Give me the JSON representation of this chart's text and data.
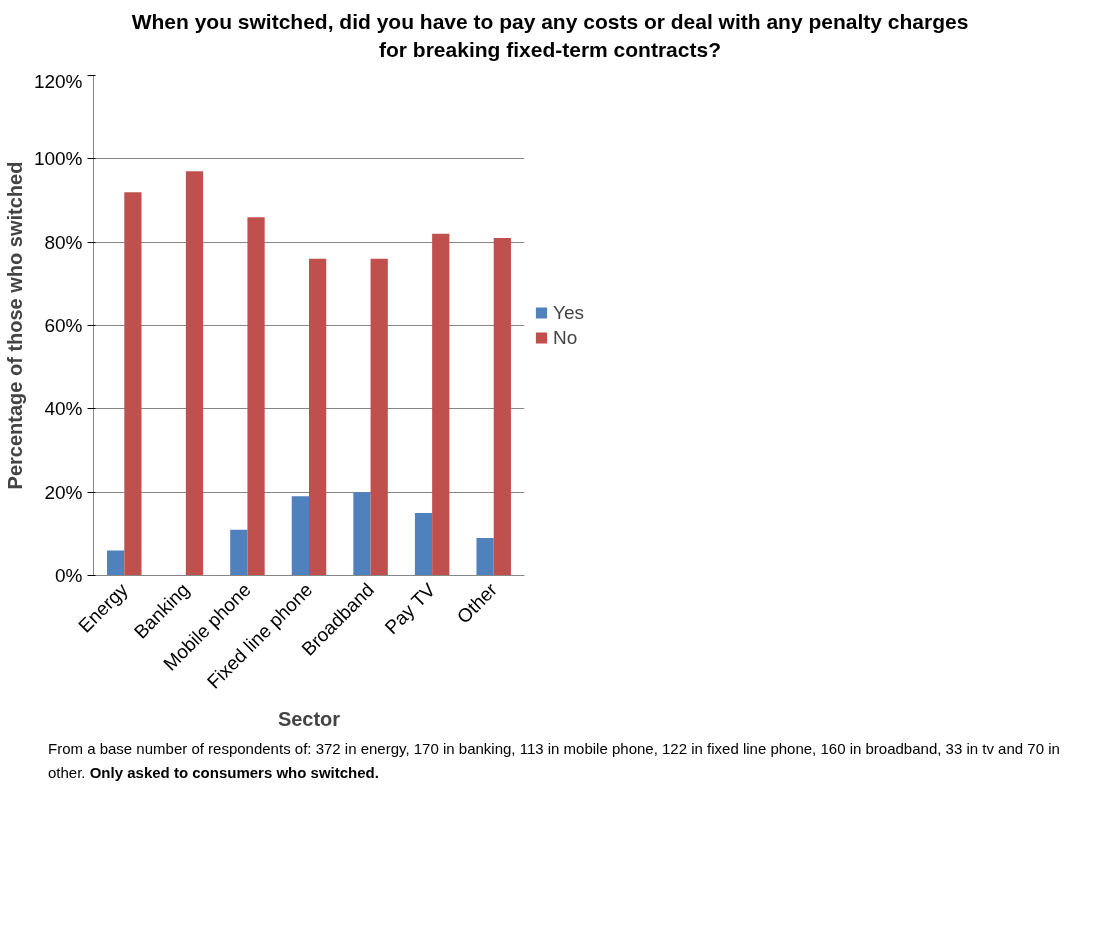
{
  "chart_data": {
    "type": "bar",
    "title": "When you switched, did you have to pay any costs or deal with any penalty charges for breaking fixed-term contracts?",
    "xlabel": "Sector",
    "ylabel": "Percentage of those who switched",
    "categories": [
      "Energy",
      "Banking",
      "Mobile phone",
      "Fixed line phone",
      "Broadband",
      "Pay TV",
      "Other"
    ],
    "series": [
      {
        "name": "Yes",
        "color": "#4f81bd",
        "values": [
          6,
          0,
          11,
          19,
          20,
          15,
          9
        ]
      },
      {
        "name": "No",
        "color": "#c0504d",
        "values": [
          92,
          97,
          86,
          76,
          76,
          82,
          81
        ]
      }
    ],
    "ylim": [
      0,
      120
    ],
    "yticks": [
      {
        "value": 0,
        "label": "0%"
      },
      {
        "value": 20,
        "label": "20%"
      },
      {
        "value": 40,
        "label": "40%"
      },
      {
        "value": 60,
        "label": "60%"
      },
      {
        "value": 80,
        "label": "80%"
      },
      {
        "value": 100,
        "label": "100%"
      },
      {
        "value": 120,
        "label": "120%"
      }
    ],
    "grid": "y",
    "legend": "right",
    "annotations": [
      "From a base number of respondents of: 372 in energy, 170 in banking, 113 in mobile phone, 122 in fixed line phone, 160 in broadband, 33 in tv and 70 in other.",
      "Only asked to consumers who switched."
    ]
  }
}
